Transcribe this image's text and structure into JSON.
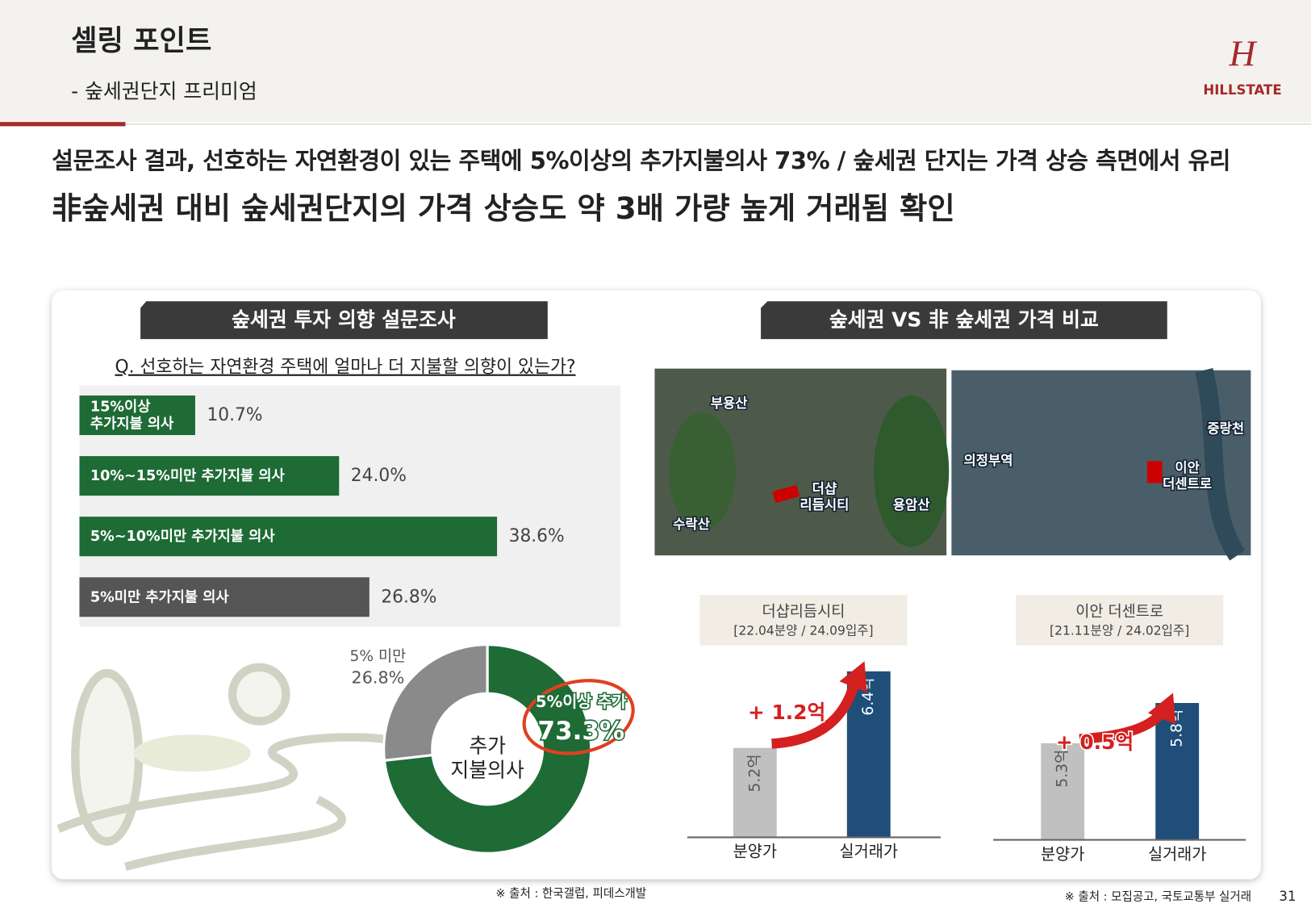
{
  "header": {
    "title": "셀링 포인트",
    "subtitle": "- 숲세권단지 프리미엄",
    "logo": "HILLSTATE"
  },
  "headline": [
    "설문조사 결과, 선호하는 자연환경이 있는 주택에 5%이상의 추가지불의사 73% / 숲세권 단지는 가격 상승 측면에서 유리",
    "非숲세권 대비 숲세권단지의 가격 상승도 약 3배 가량 높게 거래됨 확인"
  ],
  "survey": {
    "title": "숲세권 투자 의향 설문조사",
    "question": "Q. 선호하는 자연환경 주택에 얼마나 더 지불할 의향이 있는가?",
    "chart": {
      "type": "bar",
      "categories": [
        "15%이상\n추가지불 의사",
        "10%~15%미만 추가지불 의사",
        "5%~10%미만 추가지불 의사",
        "5%미만 추가지불 의사"
      ],
      "values": [
        10.7,
        24.0,
        38.6,
        26.8
      ],
      "value_labels": [
        "10.7%",
        "24.0%",
        "38.6%",
        "26.8%"
      ],
      "colors": [
        "#1e6b35",
        "#1e6b35",
        "#1e6b35",
        "#555555"
      ],
      "xlim": [
        0,
        50
      ]
    },
    "donut": {
      "type": "pie",
      "center_label": "추가\n지불의사",
      "categories": [
        "5% 미만",
        "5%이상 추가"
      ],
      "values": [
        26.8,
        73.3
      ],
      "value_labels": [
        "26.8%",
        "73.3%"
      ],
      "colors": [
        "#8a8a8a",
        "#1e6b35"
      ]
    }
  },
  "price": {
    "title": "숲세권 VS 非 숲세권 가격 비교",
    "maps": [
      [
        "부용산",
        "더샵\n리듬시티",
        "용암산",
        "수락산"
      ],
      [
        "의정부역",
        "이안\n더센트로",
        "중랑천"
      ]
    ],
    "charts": [
      {
        "type": "bar",
        "name": "더샵리듬시티",
        "period": "[22.04분양 / 24.09입주]",
        "categories": [
          "분양가",
          "실거래가"
        ],
        "values": [
          5.2,
          6.4
        ],
        "value_labels": [
          "5.2억",
          "6.4억"
        ],
        "diff_label": "+ 1.2억",
        "colors": [
          "#c0c0c0",
          "#1f4e79"
        ],
        "ylim": [
          3.8,
          6.7
        ]
      },
      {
        "type": "bar",
        "name": "이안 더센트로",
        "period": "[21.11분양 / 24.02입주]",
        "categories": [
          "분양가",
          "실거래가"
        ],
        "values": [
          5.3,
          5.8
        ],
        "value_labels": [
          "5.3억",
          "5.8억"
        ],
        "diff_label": "+ 0.5억",
        "colors": [
          "#c0c0c0",
          "#1f4e79"
        ],
        "ylim": [
          4.1,
          6.4
        ]
      }
    ]
  },
  "sources": [
    "※ 출처 : 한국갤럽, 피데스개발",
    "※ 출처 : 모집공고, 국토교통부 실거래"
  ],
  "page": "31"
}
